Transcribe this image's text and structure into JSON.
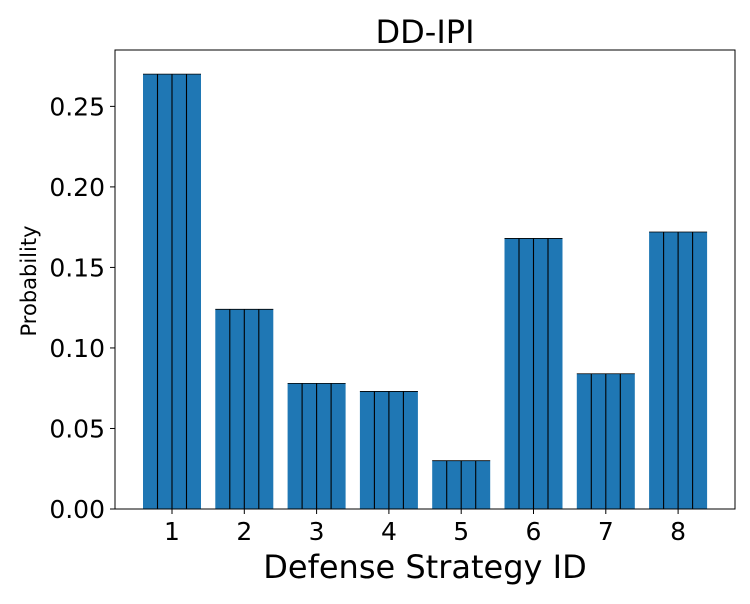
{
  "chart_data": {
    "type": "bar",
    "title": "DD-IPI",
    "xlabel": "Defense Strategy ID",
    "ylabel": "Probability",
    "categories": [
      "1",
      "2",
      "3",
      "4",
      "5",
      "6",
      "7",
      "8"
    ],
    "values": [
      0.27,
      0.124,
      0.078,
      0.073,
      0.03,
      0.168,
      0.084,
      0.172
    ],
    "ylim": [
      0,
      0.285
    ],
    "yticks": [
      "0.00",
      "0.05",
      "0.10",
      "0.15",
      "0.20",
      "0.25"
    ],
    "ytick_values": [
      0,
      0.05,
      0.1,
      0.15,
      0.2,
      0.25
    ],
    "grid": false,
    "legend": "none",
    "bar_color": "#1f77b4",
    "bar_edge_color": "#000000"
  }
}
